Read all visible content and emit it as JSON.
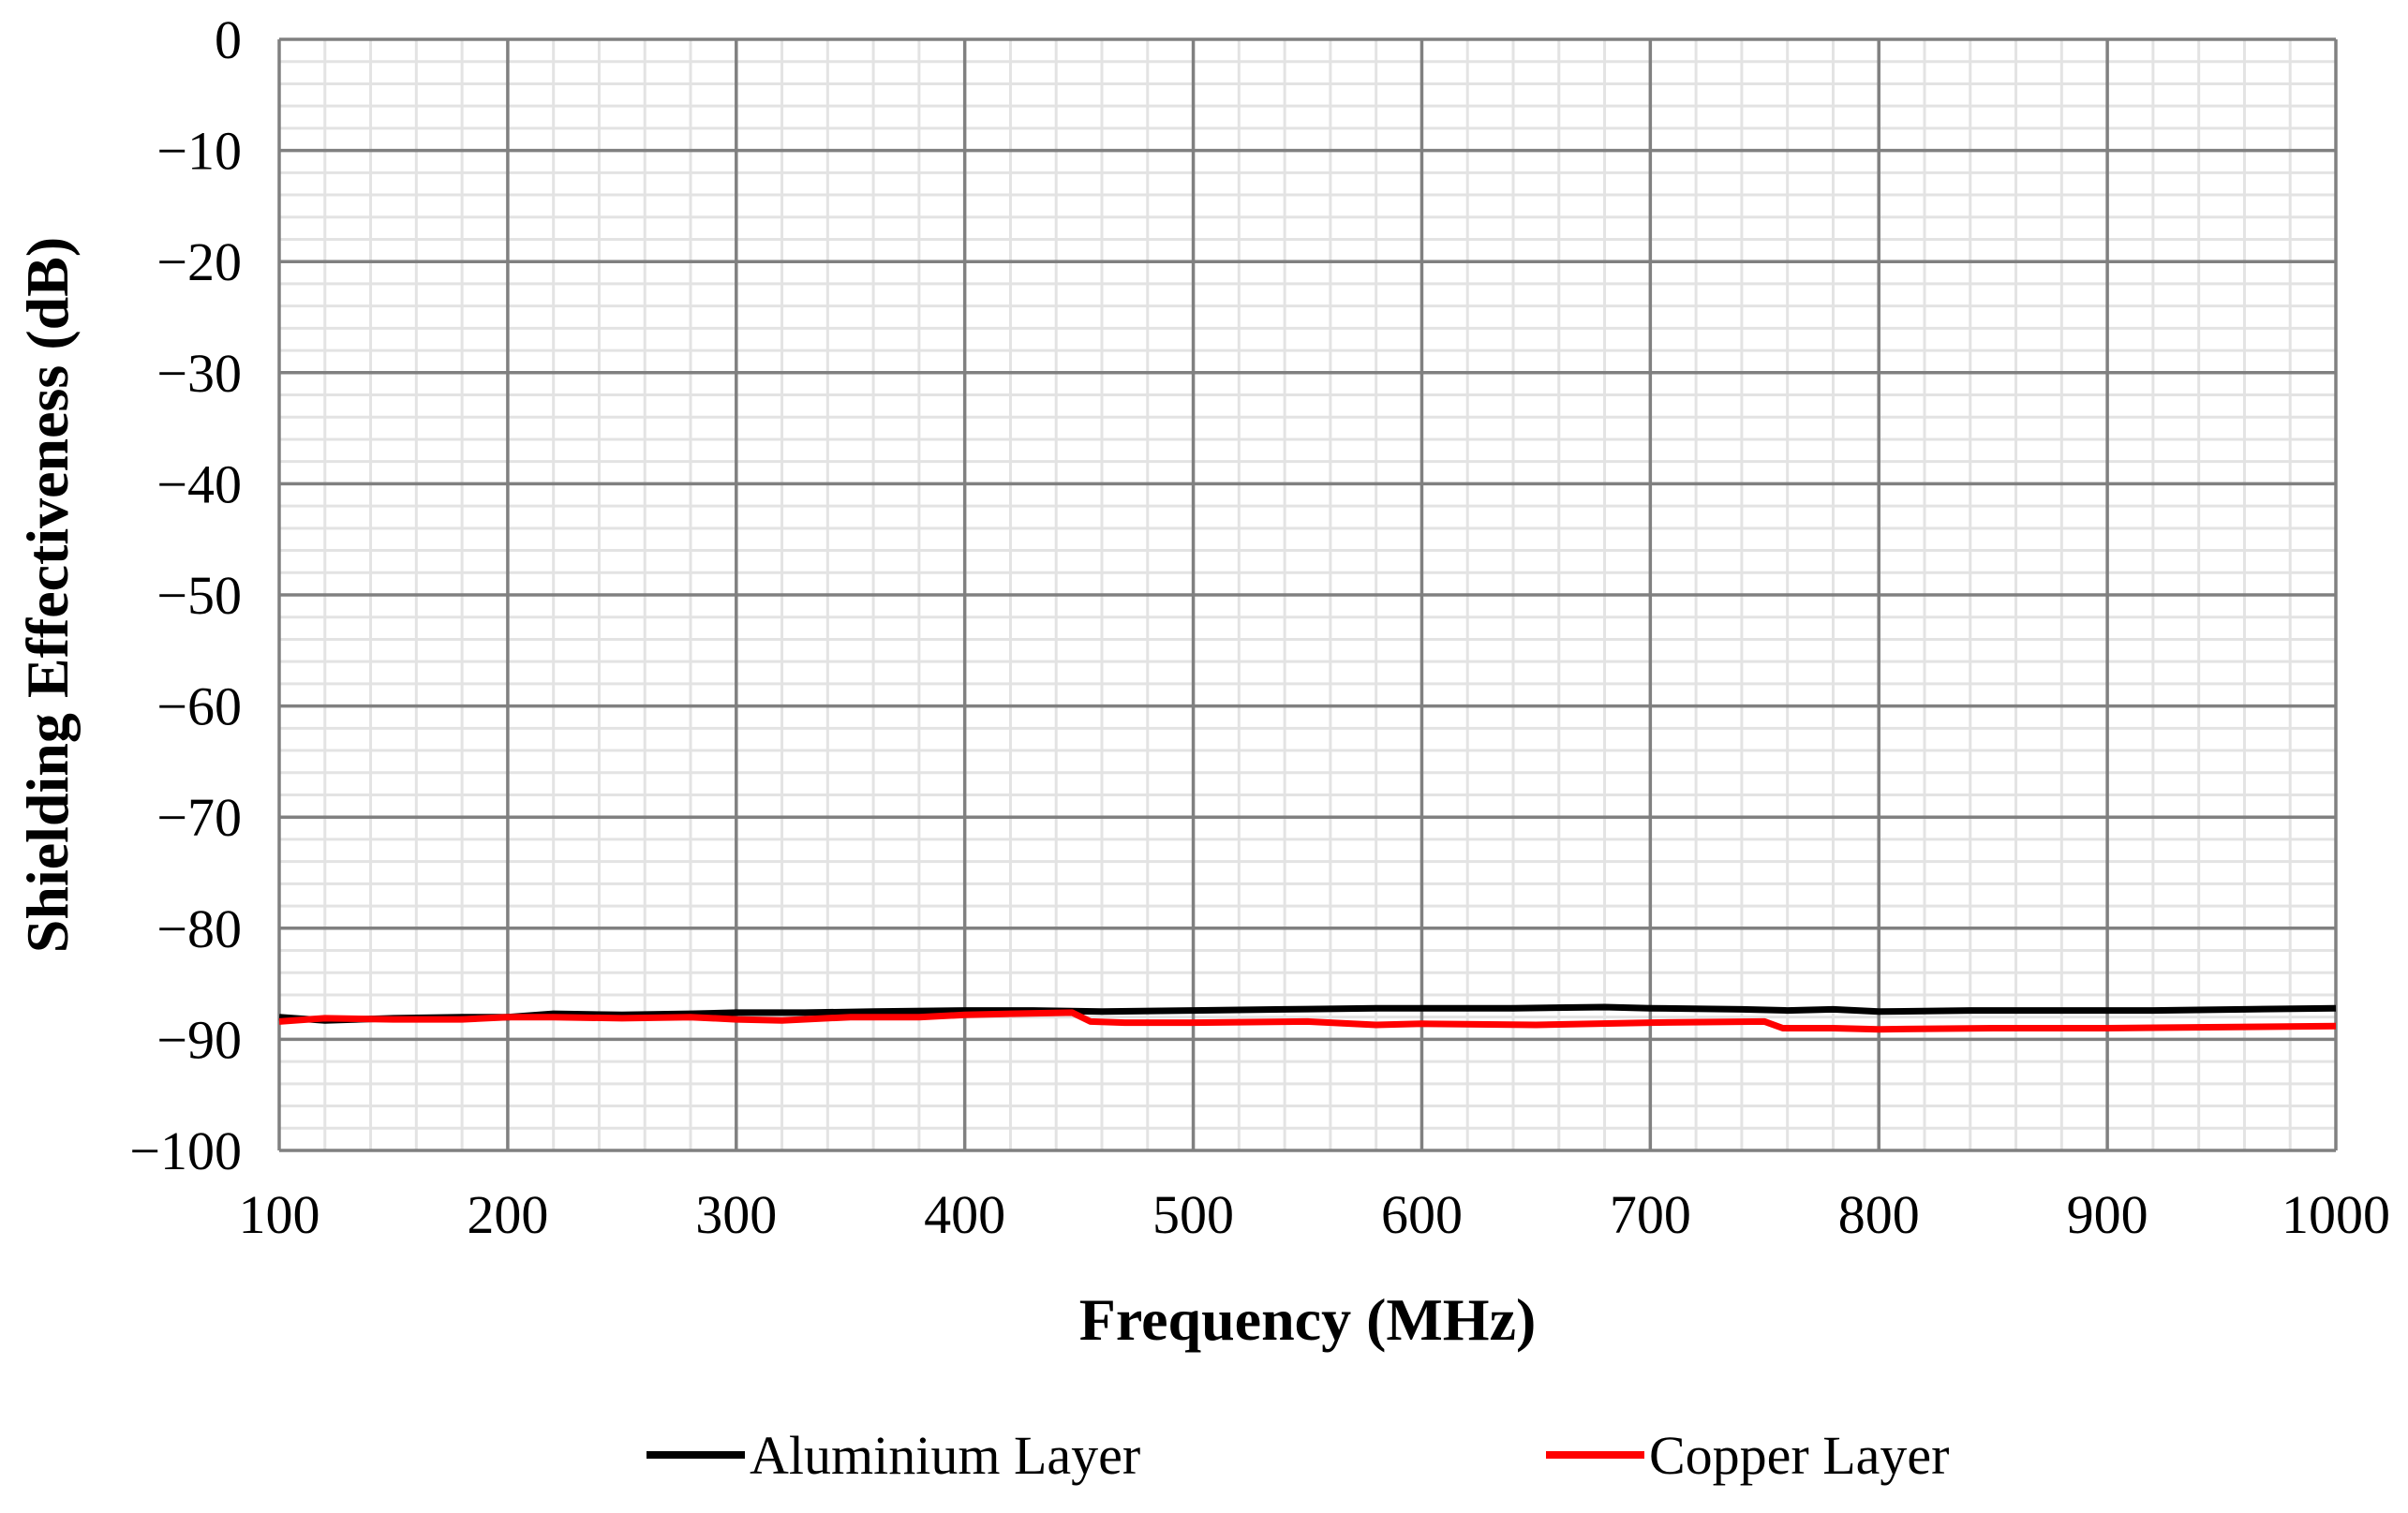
{
  "chart_data": {
    "type": "line",
    "title": "",
    "xlabel": "Frequency (MHz)",
    "ylabel": "Shielding Effectiveness (dB)",
    "xlim": [
      100,
      1000
    ],
    "ylim": [
      -100,
      0
    ],
    "x_ticks": [
      100,
      200,
      300,
      400,
      500,
      600,
      700,
      800,
      900,
      1000
    ],
    "x_tick_labels": [
      "100",
      "200",
      "300",
      "400",
      "500",
      "600",
      "700",
      "800",
      "900",
      "1000"
    ],
    "y_ticks": [
      0,
      -10,
      -20,
      -30,
      -40,
      -50,
      -60,
      -70,
      -80,
      -90,
      -100
    ],
    "y_tick_labels": [
      "0",
      "−10",
      "−20",
      "−30",
      "−40",
      "−50",
      "−60",
      "−70",
      "−80",
      "−90",
      "−100"
    ],
    "grid": true,
    "minor_grid": true,
    "legend_position": "bottom",
    "series": [
      {
        "name": "Aluminium Layer",
        "color": "#000000",
        "x": [
          100,
          120,
          150,
          180,
          200,
          220,
          250,
          280,
          300,
          330,
          360,
          400,
          430,
          460,
          500,
          540,
          580,
          600,
          640,
          680,
          700,
          740,
          760,
          780,
          800,
          840,
          880,
          920,
          960,
          1000
        ],
        "y": [
          -88.0,
          -88.3,
          -88.1,
          -88.0,
          -88.0,
          -87.7,
          -87.8,
          -87.7,
          -87.6,
          -87.6,
          -87.5,
          -87.4,
          -87.4,
          -87.5,
          -87.4,
          -87.3,
          -87.2,
          -87.2,
          -87.2,
          -87.1,
          -87.2,
          -87.3,
          -87.4,
          -87.3,
          -87.5,
          -87.4,
          -87.4,
          -87.4,
          -87.3,
          -87.2
        ]
      },
      {
        "name": "Copper Layer",
        "color": "#ff0000",
        "x": [
          100,
          120,
          150,
          180,
          200,
          220,
          250,
          280,
          300,
          320,
          350,
          380,
          400,
          420,
          447,
          455,
          470,
          500,
          550,
          580,
          600,
          650,
          700,
          750,
          758,
          780,
          800,
          850,
          900,
          950,
          1000
        ],
        "y": [
          -88.4,
          -88.1,
          -88.2,
          -88.2,
          -88.0,
          -88.0,
          -88.1,
          -88.0,
          -88.2,
          -88.3,
          -88.0,
          -88.0,
          -87.8,
          -87.7,
          -87.6,
          -88.4,
          -88.5,
          -88.5,
          -88.4,
          -88.7,
          -88.6,
          -88.7,
          -88.5,
          -88.4,
          -89.0,
          -89.0,
          -89.1,
          -89.0,
          -89.0,
          -88.9,
          -88.8
        ]
      }
    ]
  }
}
